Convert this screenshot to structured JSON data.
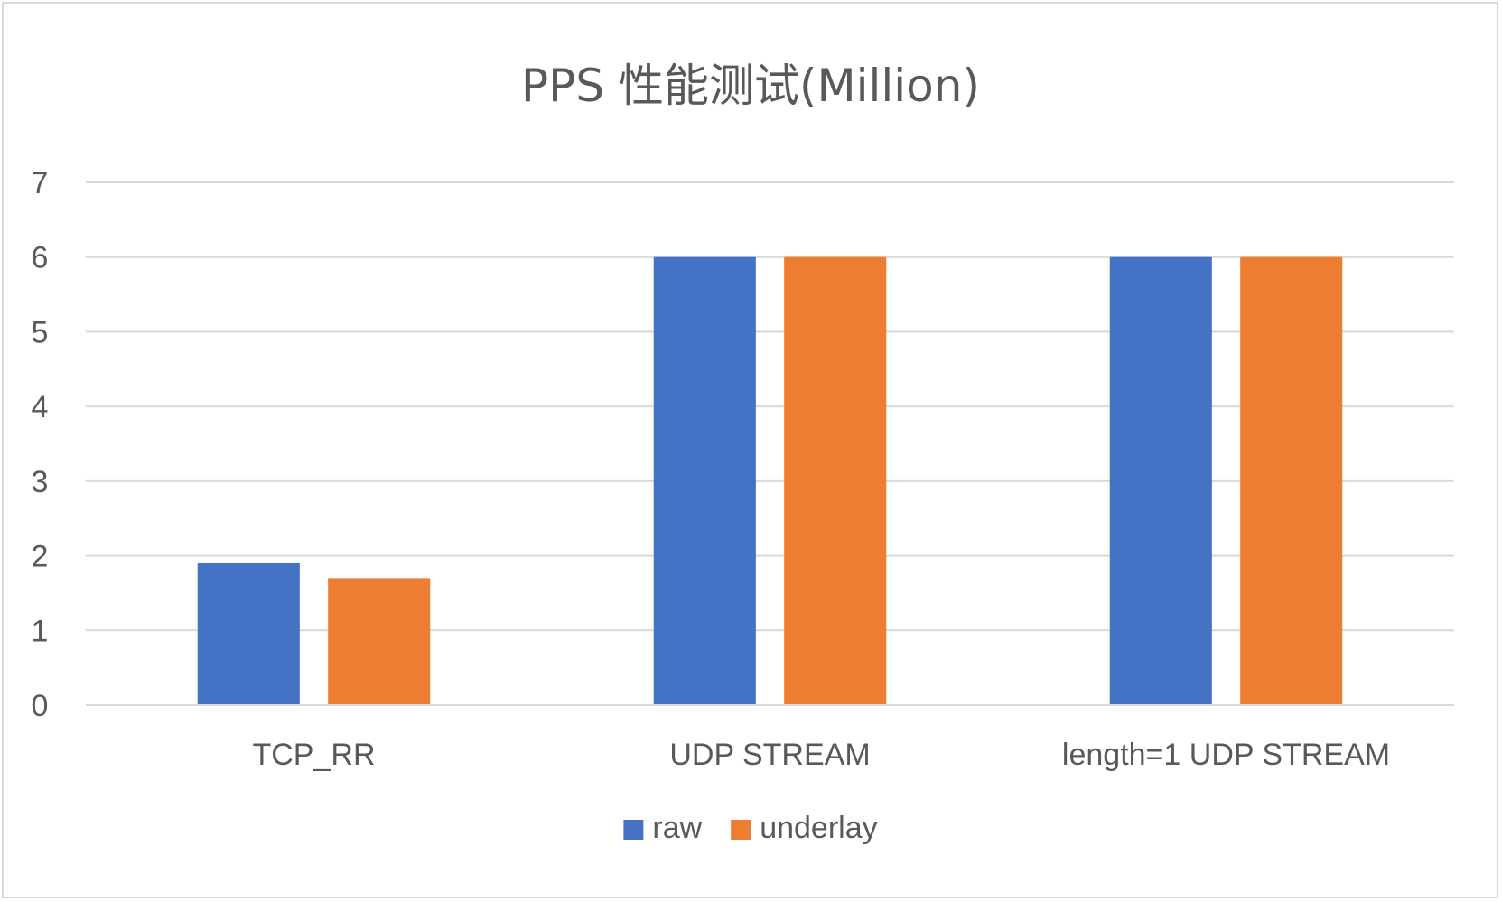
{
  "chart_data": {
    "type": "bar",
    "title": "PPS 性能测试(Million)",
    "xlabel": "",
    "ylabel": "",
    "categories": [
      "TCP_RR",
      "UDP STREAM",
      "length=1 UDP STREAM"
    ],
    "series": [
      {
        "name": "raw",
        "values": [
          1.9,
          6,
          6
        ],
        "color": "#4472C4"
      },
      {
        "name": "underlay",
        "values": [
          1.7,
          6,
          6
        ],
        "color": "#ED7D31"
      }
    ],
    "ylim": [
      0,
      7
    ],
    "yticks": [
      0,
      1,
      2,
      3,
      4,
      5,
      6,
      7
    ],
    "grid": true,
    "legend": "bottom",
    "colors": {
      "gridline": "#D9D9D9",
      "text": "#595959",
      "border": "#D9D9D9"
    }
  }
}
